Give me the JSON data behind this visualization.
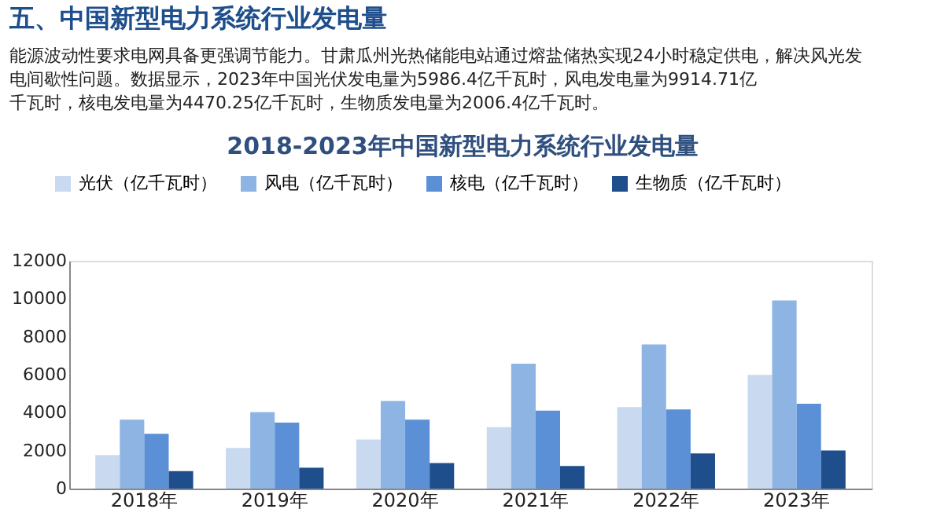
{
  "chart_data": {
    "type": "bar",
    "title": "2018-2023年中国新型电力系统行业发电量",
    "annotations": [
      "五、中国新型电力系统行业发电量",
      "能源波动性要求电网具备更强调节能力。甘肃瓜州光热储能电站通过熔盐储热实现24小时稳定供电，解决风光发电间歇性问题。数据显示，2023年中国光伏发电量为5986.4亿千瓦时，风电发电量为9914.71亿千瓦时，核电发电量为4470.25亿千瓦时，生物质发电量为2006.4亿千瓦时。"
    ],
    "categories": [
      "2018年",
      "2019年",
      "2020年",
      "2021年",
      "2022年",
      "2023年"
    ],
    "series": [
      {
        "name": "光伏（亿千瓦时）",
        "color": "#c9daf0",
        "values": [
          1770,
          2140,
          2590,
          3240,
          4290,
          5986.4
        ]
      },
      {
        "name": "风电（亿千瓦时）",
        "color": "#8db4e2",
        "values": [
          3630,
          4020,
          4610,
          6580,
          7590,
          9914.71
        ]
      },
      {
        "name": "核电（亿千瓦时）",
        "color": "#5b8fd6",
        "values": [
          2890,
          3480,
          3630,
          4110,
          4170,
          4470.25
        ]
      },
      {
        "name": "生物质（亿千瓦时）",
        "color": "#1f4e8c",
        "values": [
          920,
          1100,
          1340,
          1190,
          1850,
          2006.4
        ]
      }
    ],
    "ylim": [
      0,
      12000
    ],
    "yticks": [
      0,
      {
        "value": 2000,
        "label": "2000"
      },
      {
        "value": 4000,
        "label": "4000"
      },
      {
        "value": 6000,
        "label": "6000"
      },
      {
        "value": 8000,
        "label": "8000"
      },
      {
        "value": 10000,
        "label": "10000"
      },
      {
        "value": 12000,
        "label": "12000"
      }
    ],
    "grid": false,
    "legend": "top"
  }
}
